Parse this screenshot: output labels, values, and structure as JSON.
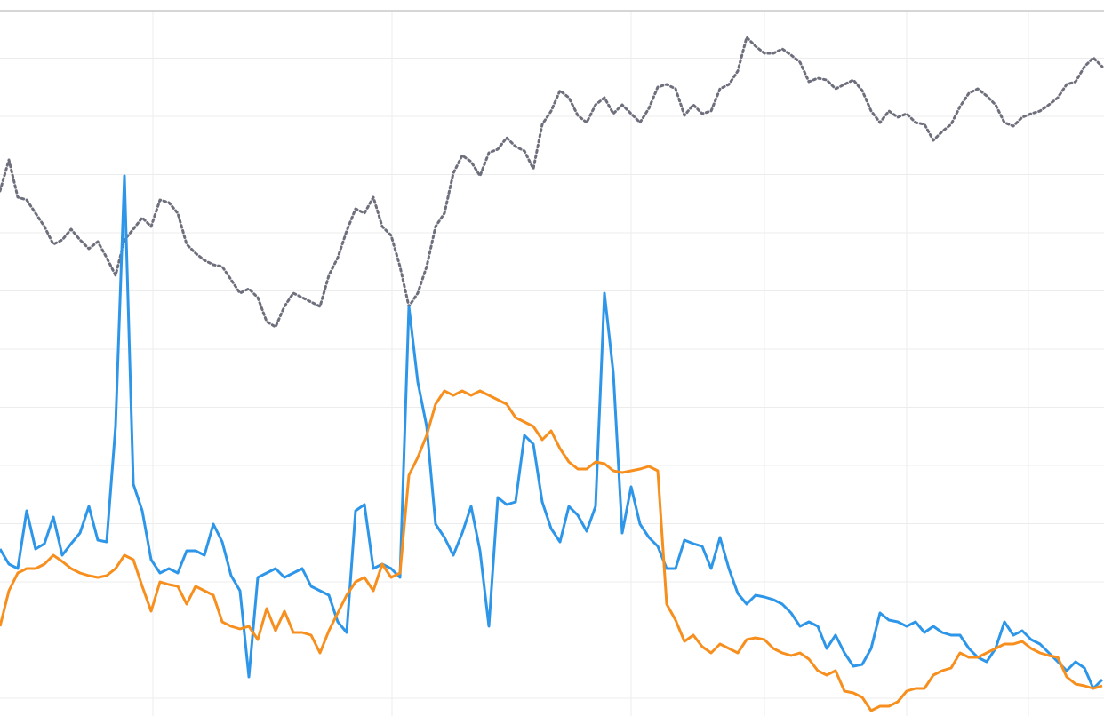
{
  "chart_data": {
    "type": "line",
    "xlim": [
      0,
      1242
    ],
    "ylim": [
      0,
      794
    ],
    "xticks": [
      172,
      441,
      710,
      860,
      1020,
      1157
    ],
    "yticks": [
      20,
      85.5,
      151,
      216.5,
      282,
      347.5,
      413,
      478.5,
      544,
      609.5,
      675,
      740.5
    ],
    "grid": true,
    "x": [
      0,
      10,
      20,
      30,
      40,
      50,
      60,
      70,
      80,
      90,
      100,
      110,
      120,
      130,
      140,
      150,
      160,
      170,
      180,
      190,
      200,
      210,
      220,
      230,
      240,
      250,
      260,
      270,
      280,
      290,
      300,
      310,
      320,
      330,
      340,
      350,
      360,
      370,
      380,
      390,
      400,
      410,
      420,
      430,
      440,
      450,
      460,
      470,
      480,
      490,
      500,
      510,
      520,
      530,
      540,
      550,
      560,
      570,
      580,
      590,
      600,
      610,
      620,
      630,
      640,
      650,
      660,
      670,
      680,
      690,
      700,
      710,
      720,
      730,
      740,
      750,
      760,
      770,
      780,
      790,
      800,
      810,
      820,
      830,
      840,
      850,
      860,
      870,
      880,
      890,
      900,
      910,
      920,
      930,
      940,
      950,
      960,
      970,
      980,
      990,
      1000,
      1010,
      1020,
      1030,
      1040,
      1050,
      1060,
      1070,
      1080,
      1090,
      1100,
      1110,
      1120,
      1130,
      1140,
      1150,
      1160,
      1170,
      1180,
      1190,
      1200,
      1210,
      1220,
      1230,
      1240
    ],
    "series": [
      {
        "color": "#6e6f7c",
        "style": "dotted",
        "values": [
          591,
          626,
          584,
          581,
          566,
          551,
          531,
          536,
          548,
          536,
          526,
          534,
          516,
          496,
          536,
          548,
          561,
          551,
          581,
          578,
          566,
          531,
          521,
          513,
          508,
          506,
          491,
          476,
          481,
          471,
          444,
          438,
          461,
          476,
          471,
          466,
          461,
          496,
          516,
          546,
          571,
          566,
          584,
          551,
          541,
          506,
          461,
          476,
          506,
          551,
          566,
          611,
          631,
          624,
          608,
          634,
          638,
          651,
          641,
          636,
          616,
          666,
          681,
          704,
          696,
          676,
          668,
          688,
          696,
          678,
          688,
          678,
          668,
          684,
          708,
          711,
          706,
          676,
          688,
          678,
          681,
          706,
          711,
          726,
          764,
          754,
          746,
          746,
          751,
          744,
          736,
          714,
          718,
          716,
          706,
          711,
          716,
          704,
          681,
          668,
          681,
          674,
          678,
          668,
          666,
          648,
          658,
          666,
          686,
          701,
          706,
          698,
          688,
          668,
          664,
          674,
          678,
          681,
          688,
          696,
          711,
          714,
          731,
          741,
          731
        ]
      },
      {
        "color": "#2e96e8",
        "style": "solid",
        "values": [
          188,
          171,
          166,
          231,
          188,
          194,
          224,
          181,
          194,
          206,
          236,
          198,
          196,
          326,
          608,
          261,
          231,
          176,
          161,
          166,
          161,
          186,
          186,
          181,
          216,
          196,
          158,
          141,
          44,
          156,
          161,
          166,
          156,
          161,
          166,
          146,
          141,
          136,
          106,
          94,
          231,
          238,
          166,
          171,
          166,
          156,
          461,
          376,
          326,
          216,
          201,
          181,
          206,
          236,
          186,
          101,
          246,
          238,
          241,
          316,
          306,
          241,
          211,
          196,
          236,
          226,
          208,
          236,
          476,
          386,
          206,
          258,
          216,
          201,
          191,
          166,
          166,
          198,
          194,
          191,
          166,
          201,
          166,
          138,
          126,
          136,
          134,
          131,
          126,
          116,
          101,
          106,
          101,
          76,
          91,
          71,
          56,
          58,
          76,
          116,
          108,
          106,
          101,
          106,
          94,
          101,
          94,
          91,
          91,
          76,
          66,
          61,
          76,
          106,
          91,
          96,
          86,
          81,
          71,
          61,
          51,
          61,
          54,
          31,
          41
        ]
      },
      {
        "color": "#f78f1e",
        "style": "solid",
        "values": [
          101,
          141,
          161,
          166,
          166,
          171,
          181,
          174,
          166,
          161,
          158,
          156,
          158,
          166,
          181,
          176,
          146,
          118,
          151,
          148,
          146,
          126,
          146,
          141,
          136,
          106,
          101,
          98,
          101,
          86,
          121,
          96,
          118,
          94,
          94,
          91,
          71,
          96,
          116,
          136,
          151,
          156,
          141,
          171,
          156,
          161,
          271,
          291,
          316,
          351,
          366,
          361,
          366,
          361,
          366,
          361,
          356,
          351,
          336,
          331,
          326,
          311,
          321,
          301,
          286,
          278,
          278,
          286,
          284,
          276,
          274,
          276,
          278,
          281,
          276,
          126,
          108,
          84,
          91,
          78,
          71,
          81,
          76,
          71,
          86,
          88,
          86,
          76,
          71,
          68,
          71,
          64,
          51,
          46,
          51,
          28,
          26,
          21,
          6,
          11,
          11,
          16,
          28,
          31,
          31,
          46,
          51,
          54,
          71,
          66,
          66,
          71,
          76,
          81,
          81,
          84,
          76,
          71,
          68,
          66,
          44,
          36,
          34,
          31,
          34
        ]
      }
    ]
  }
}
